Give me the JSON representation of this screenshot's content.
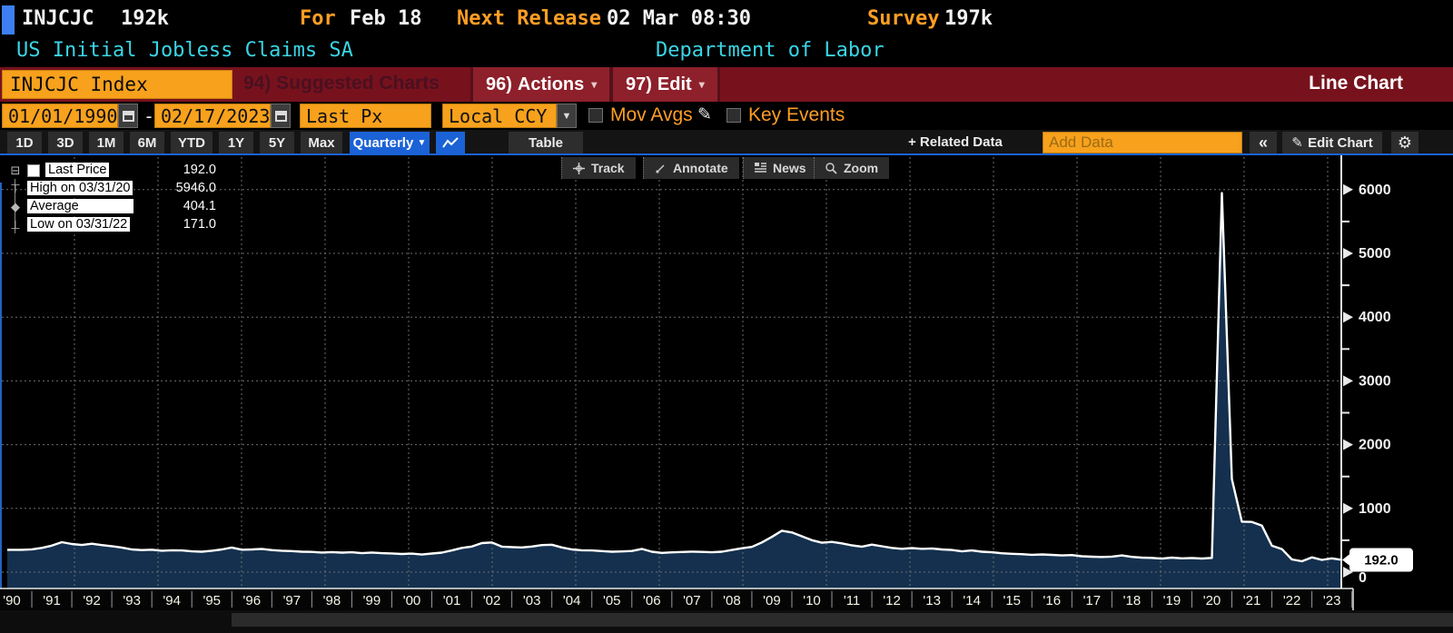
{
  "header": {
    "ticker": "INJCJC",
    "last": "192k",
    "for_label": "For",
    "for_value": "Feb 18",
    "next_release_label": "Next Release",
    "next_release_value": "02 Mar 08:30",
    "survey_label": "Survey",
    "survey_value": "197k",
    "security_name": "US Initial Jobless Claims SA",
    "source": "Department of Labor"
  },
  "ribbon": {
    "ticker_field": "INJCJC Index",
    "suggested_charts": "94) Suggested Charts",
    "actions_num": "96)",
    "actions_label": "Actions",
    "edit_num": "97)",
    "edit_label": "Edit",
    "chart_type": "Line Chart"
  },
  "controls": {
    "date_from": "01/01/1990",
    "dash": "-",
    "date_to": "02/17/2023",
    "field": "Last Px",
    "currency": "Local CCY",
    "mov_avgs": "Mov Avgs",
    "key_events": "Key Events"
  },
  "toolbar": {
    "ranges": [
      "1D",
      "3D",
      "1M",
      "6M",
      "YTD",
      "1Y",
      "5Y",
      "Max"
    ],
    "period": "Quarterly",
    "period_caret": "▼",
    "table": "Table",
    "related_data": "+ Related Data",
    "add_data_placeholder": "Add Data",
    "collapse": "«",
    "edit_chart": "Edit Chart"
  },
  "chart_toolbar": {
    "track": "Track",
    "annotate": "Annotate",
    "news": "News",
    "zoom": "Zoom"
  },
  "legend": {
    "rows": [
      {
        "label": "Last Price",
        "value": "192.0"
      },
      {
        "label": "High on 03/31/20",
        "value": "5946.0"
      },
      {
        "label": "Average",
        "value": "404.1"
      },
      {
        "label": "Low on 03/31/22",
        "value": "171.0"
      }
    ]
  },
  "chart_data": {
    "type": "area",
    "title": "US Initial Jobless Claims SA (INJCJC Index)",
    "frequency": "quarterly",
    "x_start": "1990-Q1",
    "x_end": "2023-Q1",
    "xlim_years": [
      1990,
      2023.3
    ],
    "ylim": [
      0,
      6550
    ],
    "y_ticks": [
      6000,
      5000,
      4000,
      3000,
      2000,
      1000,
      0
    ],
    "x_tick_labels": [
      "'90",
      "'91",
      "'92",
      "'93",
      "'94",
      "'95",
      "'96",
      "'97",
      "'98",
      "'99",
      "'00",
      "'01",
      "'02",
      "'03",
      "'04",
      "'05",
      "'06",
      "'07",
      "'08",
      "'09",
      "'10",
      "'11",
      "'12",
      "'13",
      "'14",
      "'15",
      "'16",
      "'17",
      "'18",
      "'19",
      "'20",
      "'21",
      "'22",
      "'23"
    ],
    "values": [
      350,
      358,
      380,
      416,
      470,
      442,
      426,
      446,
      424,
      408,
      386,
      356,
      346,
      352,
      336,
      344,
      340,
      326,
      320,
      336,
      356,
      386,
      352,
      356,
      364,
      346,
      336,
      331,
      321,
      318,
      308,
      315,
      306,
      312,
      298,
      308,
      298,
      294,
      285,
      291,
      276,
      292,
      306,
      340,
      380,
      402,
      456,
      466,
      400,
      393,
      388,
      401,
      424,
      430,
      388,
      356,
      344,
      340,
      330,
      320,
      325,
      332,
      364,
      320,
      302,
      310,
      316,
      322,
      318,
      312,
      321,
      348,
      375,
      396,
      466,
      552,
      650,
      622,
      562,
      502,
      462,
      474,
      452,
      420,
      400,
      432,
      406,
      380,
      366,
      378,
      366,
      372,
      356,
      348,
      326,
      340,
      320,
      312,
      296,
      288,
      282,
      272,
      278,
      270,
      262,
      268,
      250,
      242,
      238,
      244,
      262,
      240,
      228,
      224,
      212,
      228,
      216,
      222,
      214,
      224,
      5946,
      1460,
      792,
      788,
      730,
      415,
      362,
      200,
      171,
      232,
      193,
      216,
      192
    ],
    "stats": {
      "last": 192.0,
      "high": 5946.0,
      "high_date": "03/31/20",
      "average": 404.1,
      "low": 171.0,
      "low_date": "03/31/22"
    },
    "last_price_marker": "192.0",
    "line_color": "#ffffff",
    "fill_color": "#14304e",
    "grid": "dotted",
    "grid_color": "#6e6e6e",
    "accent_blue": "#1b62d6",
    "amber": "#f7a11c"
  }
}
